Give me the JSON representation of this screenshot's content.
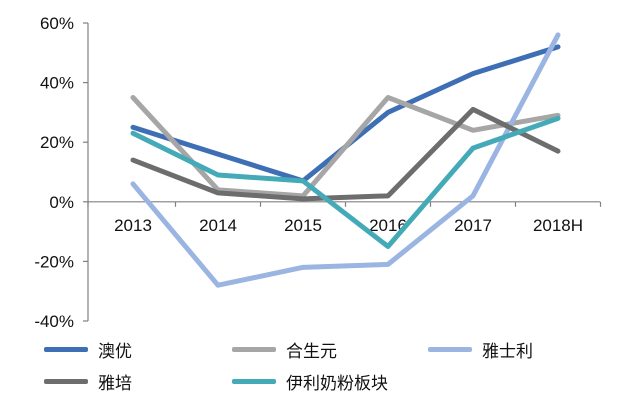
{
  "chart_data": {
    "type": "line",
    "title": "",
    "xlabel": "",
    "ylabel": "",
    "categories": [
      "2013",
      "2014",
      "2015",
      "2016",
      "2017",
      "2018H"
    ],
    "ylim": [
      -40,
      60
    ],
    "yticks": [
      60,
      40,
      20,
      0,
      -20,
      -40
    ],
    "ytick_labels": [
      "60%",
      "40%",
      "20%",
      "0%",
      "-20%",
      "-40%"
    ],
    "grid": false,
    "legend_position": "bottom",
    "series": [
      {
        "name": "澳优",
        "color": "#3e6fb4",
        "values": [
          25,
          16,
          7,
          30,
          43,
          52
        ]
      },
      {
        "name": "合生元",
        "color": "#a6a6a6",
        "values": [
          35,
          4,
          2,
          35,
          24,
          29
        ]
      },
      {
        "name": "雅士利",
        "color": "#9bb5e2",
        "values": [
          6,
          -28,
          -22,
          -21,
          2,
          56
        ]
      },
      {
        "name": "雅培",
        "color": "#6d6d6d",
        "values": [
          14,
          3,
          1,
          2,
          31,
          17
        ]
      },
      {
        "name": "伊利奶粉板块",
        "color": "#45aab8",
        "values": [
          23,
          9,
          7,
          -15,
          18,
          28
        ]
      }
    ]
  }
}
